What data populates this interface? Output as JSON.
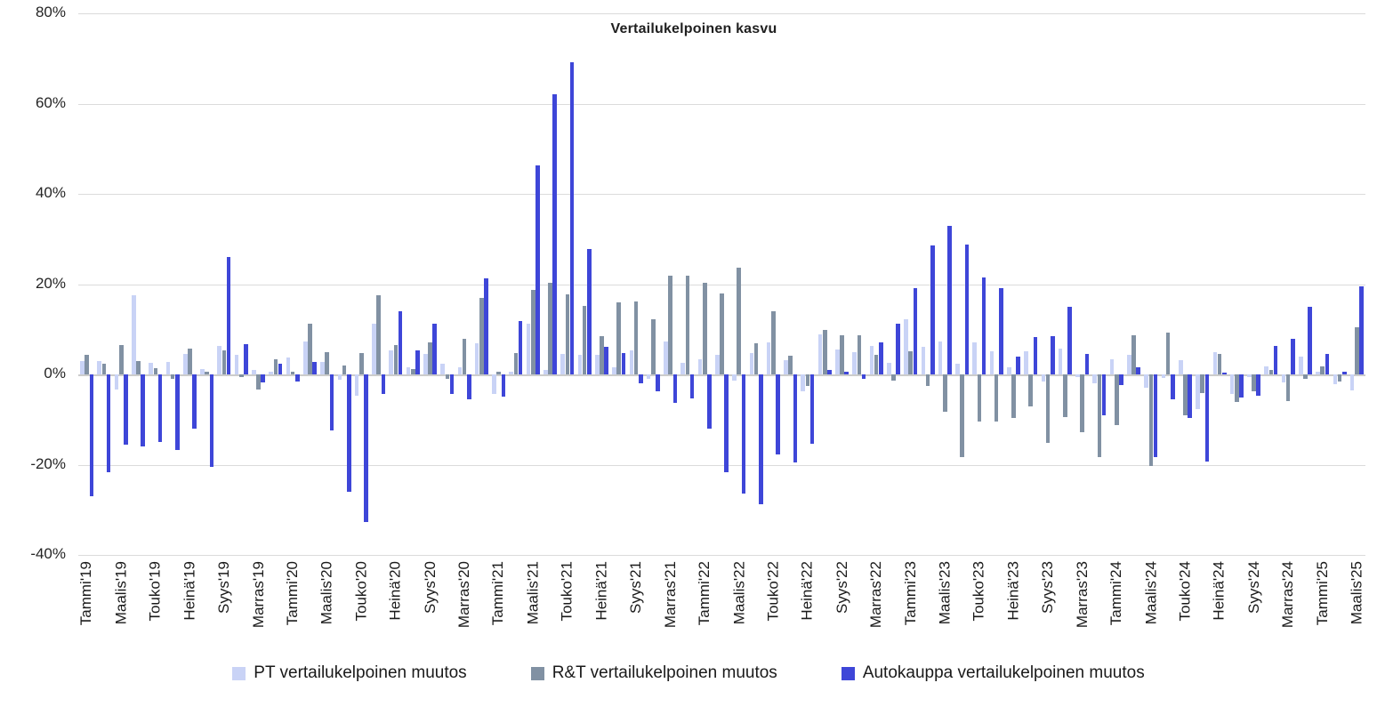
{
  "title": "Vertailukelpoinen kasvu",
  "chart_data": {
    "type": "bar",
    "title": "Vertailukelpoinen kasvu",
    "grid": true,
    "legend_position": "bottom",
    "y_axis": {
      "min": -40,
      "max": 80,
      "step": 20,
      "ticks": [
        80,
        60,
        40,
        20,
        0,
        -20,
        -40
      ],
      "tick_suffix": "%"
    },
    "x_tick_every": 2,
    "x_tick_labels": [
      "Tammi'19",
      "Maalis'19",
      "Touko'19",
      "Heinä'19",
      "Syys'19",
      "Marras'19",
      "Tammi'20",
      "Maalis'20",
      "Touko'20",
      "Heinä'20",
      "Syys'20",
      "Marras'20",
      "Tammi'21",
      "Maalis'21",
      "Touko'21",
      "Heinä'21",
      "Syys'21",
      "Marras'21",
      "Tammi'22",
      "Maalis'22",
      "Touko'22",
      "Heinä'22",
      "Syys'22",
      "Marras'22",
      "Tammi'23",
      "Maalis'23",
      "Touko'23",
      "Heinä'23",
      "Syys'23",
      "Marras'23",
      "Tammi'24",
      "Maalis'24",
      "Touko'24",
      "Heinä'24",
      "Syys'24",
      "Marras'24",
      "Tammi'25",
      "Maalis'25"
    ],
    "series": [
      {
        "name": "PT vertailukelpoinen muutos",
        "color": "#c9d3f6",
        "values": [
          3.0,
          3.0,
          -3.4,
          17.6,
          2.5,
          2.7,
          4.5,
          1.2,
          6.4,
          4.4,
          1.0,
          0.5,
          3.7,
          7.3,
          2.8,
          -1.2,
          -4.7,
          11.3,
          5.4,
          1.6,
          4.5,
          2.4,
          1.6,
          6.8,
          -4.4,
          0.5,
          11.3,
          1.0,
          4.6,
          4.3,
          4.3,
          1.6,
          5.4,
          -1.0,
          7.3,
          2.5,
          3.3,
          4.4,
          -1.4,
          4.7,
          7.0,
          3.1,
          -3.7,
          8.8,
          5.6,
          4.9,
          6.3,
          2.5,
          12.2,
          6.1,
          7.3,
          2.4,
          7.1,
          5.2,
          1.5,
          5.2,
          -1.5,
          5.7,
          -0.5,
          -2.0,
          3.4,
          4.4,
          -3.0,
          -0.8,
          3.2,
          -7.7,
          4.9,
          -4.3,
          -0.5,
          1.8,
          -1.7,
          3.9,
          0.5,
          -2.2,
          -3.5
        ]
      },
      {
        "name": "R&T vertailukelpoinen muutos",
        "color": "#8191a3",
        "values": [
          4.3,
          2.4,
          6.6,
          3.0,
          1.4,
          -1.0,
          5.8,
          0.5,
          5.4,
          -0.5,
          -3.4,
          3.3,
          0.5,
          11.3,
          4.9,
          2.0,
          4.7,
          17.5,
          6.6,
          1.2,
          7.1,
          -0.9,
          7.9,
          17.0,
          0.5,
          4.8,
          18.7,
          20.3,
          17.7,
          15.1,
          8.4,
          16.0,
          16.1,
          12.2,
          21.8,
          21.8,
          20.3,
          18.0,
          23.7,
          6.9,
          14.0,
          4.1,
          -2.6,
          9.8,
          8.6,
          8.6,
          4.4,
          -1.4,
          5.2,
          -2.6,
          -8.3,
          -18.3,
          -10.4,
          -10.5,
          -9.7,
          -7.0,
          -15.2,
          -9.5,
          -12.8,
          -18.3,
          -11.2,
          8.7,
          -20.3,
          9.3,
          -9.0,
          -4.1,
          4.5,
          -6.1,
          -3.7,
          1.0,
          -5.9,
          -1.0,
          1.8,
          -1.6,
          10.5
        ]
      },
      {
        "name": "Autokauppa vertailukelpoinen muutos",
        "color": "#3e46d8",
        "values": [
          -27.0,
          -21.7,
          -15.6,
          -15.9,
          -14.9,
          -16.8,
          -12.1,
          -20.5,
          26.0,
          6.7,
          -1.7,
          2.4,
          -1.6,
          2.8,
          -12.5,
          -26.0,
          -32.7,
          -4.3,
          14.0,
          5.3,
          11.2,
          -4.3,
          -5.6,
          21.3,
          -4.9,
          11.8,
          46.4,
          62.1,
          69.2,
          27.7,
          6.1,
          4.7,
          -1.9,
          -3.7,
          -6.3,
          -5.3,
          -12.1,
          -21.7,
          -26.4,
          -28.7,
          -17.8,
          -19.5,
          -15.3,
          1.0,
          0.6,
          -1.0,
          7.1,
          11.3,
          19.1,
          28.5,
          33.0,
          28.8,
          21.5,
          19.1,
          3.9,
          8.3,
          8.5,
          15.0,
          4.5,
          -9.0,
          -2.3,
          1.5,
          -18.3,
          -5.6,
          -9.7,
          -19.3,
          0.3,
          -5.1,
          -4.7,
          6.4,
          7.9,
          14.9,
          4.5,
          0.5,
          19.5
        ]
      }
    ]
  }
}
